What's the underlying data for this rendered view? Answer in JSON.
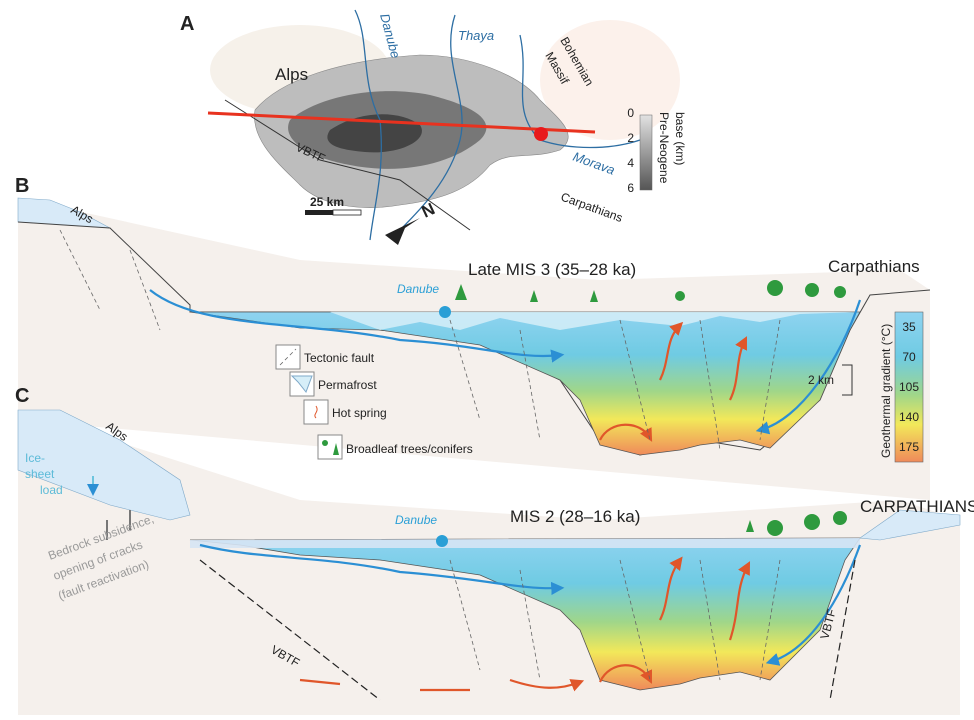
{
  "panel_a": {
    "letter": "A",
    "alps": "Alps",
    "bohemian_massif": [
      "Bohemian",
      "Massif"
    ],
    "carpathians": "Carpathians",
    "rivers": [
      "Danube",
      "Thaya",
      "Morava"
    ],
    "fault": "VBTF",
    "scale": "25 km",
    "north": "N",
    "depth_legend": {
      "title": [
        "Pre-Neogene",
        "base (km)"
      ],
      "ticks": [
        0,
        2,
        4,
        6
      ]
    }
  },
  "panel_b": {
    "letter": "B",
    "title": "Late MIS 3 (35–28 ka)",
    "alps": "Alps",
    "carpathians": "Carpathians",
    "danube": "Danube",
    "scale": "2 km"
  },
  "legend": {
    "items": [
      "Tectonic fault",
      "Permafrost",
      "Hot spring",
      "Broadleaf trees/conifers"
    ]
  },
  "colorbar": {
    "title": "Geothermal gradient (°C)",
    "ticks": [
      35,
      70,
      105,
      140,
      175
    ]
  },
  "panel_c": {
    "letter": "C",
    "title": "MIS 2 (28–16 ka)",
    "alps": "Alps",
    "carpathians": "CARPATHIANS",
    "danube": "Danube",
    "ice_sheet": [
      "Ice-",
      "sheet",
      "load"
    ],
    "subsidence": [
      "Bedrock subsidence,",
      "opening of cracks",
      "(fault reactivation)"
    ],
    "faults": [
      "VBTF",
      "VBTF"
    ]
  }
}
